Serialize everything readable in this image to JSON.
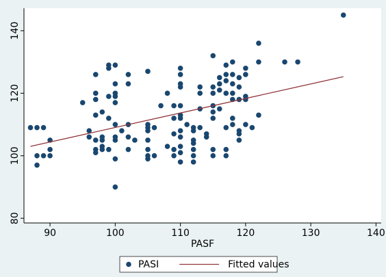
{
  "chart_data": {
    "type": "scatter",
    "xlabel": "PASF",
    "xlim": [
      86,
      140.8
    ],
    "xticks": [
      90,
      100,
      110,
      120,
      130,
      140
    ],
    "ylim": [
      78.5,
      147.2
    ],
    "yticks": [
      80,
      100,
      120,
      140
    ],
    "legend": "bottom",
    "series": [
      {
        "name": "PASI",
        "color": "#1a476f",
        "type": "scatter",
        "x": [
          87,
          88,
          89,
          88,
          88,
          89,
          90,
          90,
          90,
          95,
          96,
          96,
          97,
          97,
          97,
          97,
          97,
          97,
          97,
          98,
          98,
          98,
          98,
          98,
          99,
          99,
          99,
          99,
          99,
          100,
          100,
          100,
          100,
          100,
          100,
          100,
          100,
          100,
          100,
          101,
          102,
          102,
          102,
          102,
          102,
          103,
          105,
          105,
          105,
          105,
          105,
          105,
          105,
          105,
          106,
          106,
          107,
          108,
          108,
          109,
          109,
          109,
          109,
          109,
          110,
          110,
          110,
          110,
          110,
          110,
          110,
          110,
          110,
          110,
          110,
          110,
          111,
          112,
          112,
          112,
          112,
          112,
          112,
          112,
          113,
          113,
          113,
          113,
          114,
          114,
          115,
          115,
          115,
          115,
          115,
          115,
          115,
          115,
          116,
          116,
          116,
          116,
          117,
          117,
          117,
          117,
          117,
          117,
          117,
          118,
          118,
          118,
          118,
          118,
          118,
          118,
          119,
          119,
          119,
          119,
          119,
          119,
          120,
          120,
          120,
          120,
          120,
          121,
          122,
          122,
          122,
          126,
          128,
          135
        ],
        "values": [
          109,
          109,
          109,
          100,
          97,
          100,
          100,
          102,
          105,
          117,
          108,
          106,
          126,
          120,
          118,
          113,
          105,
          102,
          101,
          114,
          106,
          105,
          103,
          102,
          129,
          128,
          119,
          112,
          102,
          129,
          123,
          120,
          119,
          117,
          110,
          106,
          105,
          99,
          90,
          108,
          126,
          123,
          110,
          106,
          102,
          105,
          127,
          110,
          109,
          108,
          105,
          102,
          100,
          99,
          109,
          100,
          116,
          120,
          103,
          116,
          112,
          107,
          102,
          100,
          128,
          126,
          123,
          122,
          116,
          113,
          112,
          108,
          106,
          103,
          101,
          98,
          110,
          109,
          108,
          105,
          104,
          102,
          100,
          98,
          122,
          120,
          115,
          109,
          107,
          106,
          132,
          122,
          120,
          116,
          114,
          112,
          102,
          100,
          125,
          123,
          121,
          115,
          129,
          126,
          124,
          120,
          109,
          102,
          100,
          130,
          126,
          123,
          120,
          118,
          112,
          110,
          125,
          122,
          118,
          108,
          107,
          105,
          128,
          126,
          119,
          118,
          110,
          109,
          136,
          130,
          113,
          130,
          130,
          145
        ]
      },
      {
        "name": "Fitted values",
        "color": "#90353b",
        "type": "line",
        "x": [
          87,
          135
        ],
        "values": [
          103,
          125.3
        ]
      }
    ]
  }
}
